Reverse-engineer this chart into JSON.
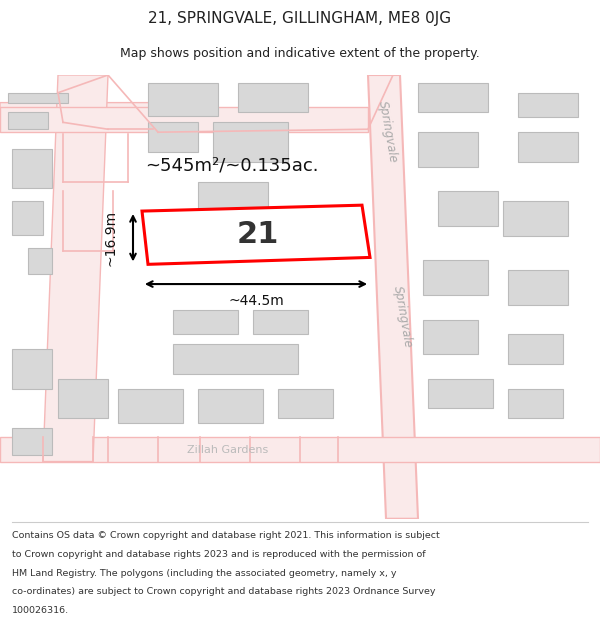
{
  "title": "21, SPRINGVALE, GILLINGHAM, ME8 0JG",
  "subtitle": "Map shows position and indicative extent of the property.",
  "footer_lines": [
    "Contains OS data © Crown copyright and database right 2021. This information is subject",
    "to Crown copyright and database rights 2023 and is reproduced with the permission of",
    "HM Land Registry. The polygons (including the associated geometry, namely x, y",
    "co-ordinates) are subject to Crown copyright and database rights 2023 Ordnance Survey",
    "100026316."
  ],
  "background_color": "#ffffff",
  "map_bg": "#fdf5f5",
  "road_fill": "#faeaea",
  "road_color": "#f5b8b8",
  "building_color": "#d8d8d8",
  "building_edge": "#bbbbbb",
  "highlight_color": "#ff0000",
  "highlight_fill": "#ffffff",
  "area_text": "~545m²/~0.135ac.",
  "number_label": "21",
  "dim_width": "~44.5m",
  "dim_height": "~16.9m",
  "street_name_top": "Springvale",
  "street_name_bottom": "Springvale",
  "street_name_bottom2": "Zillah Gardens"
}
